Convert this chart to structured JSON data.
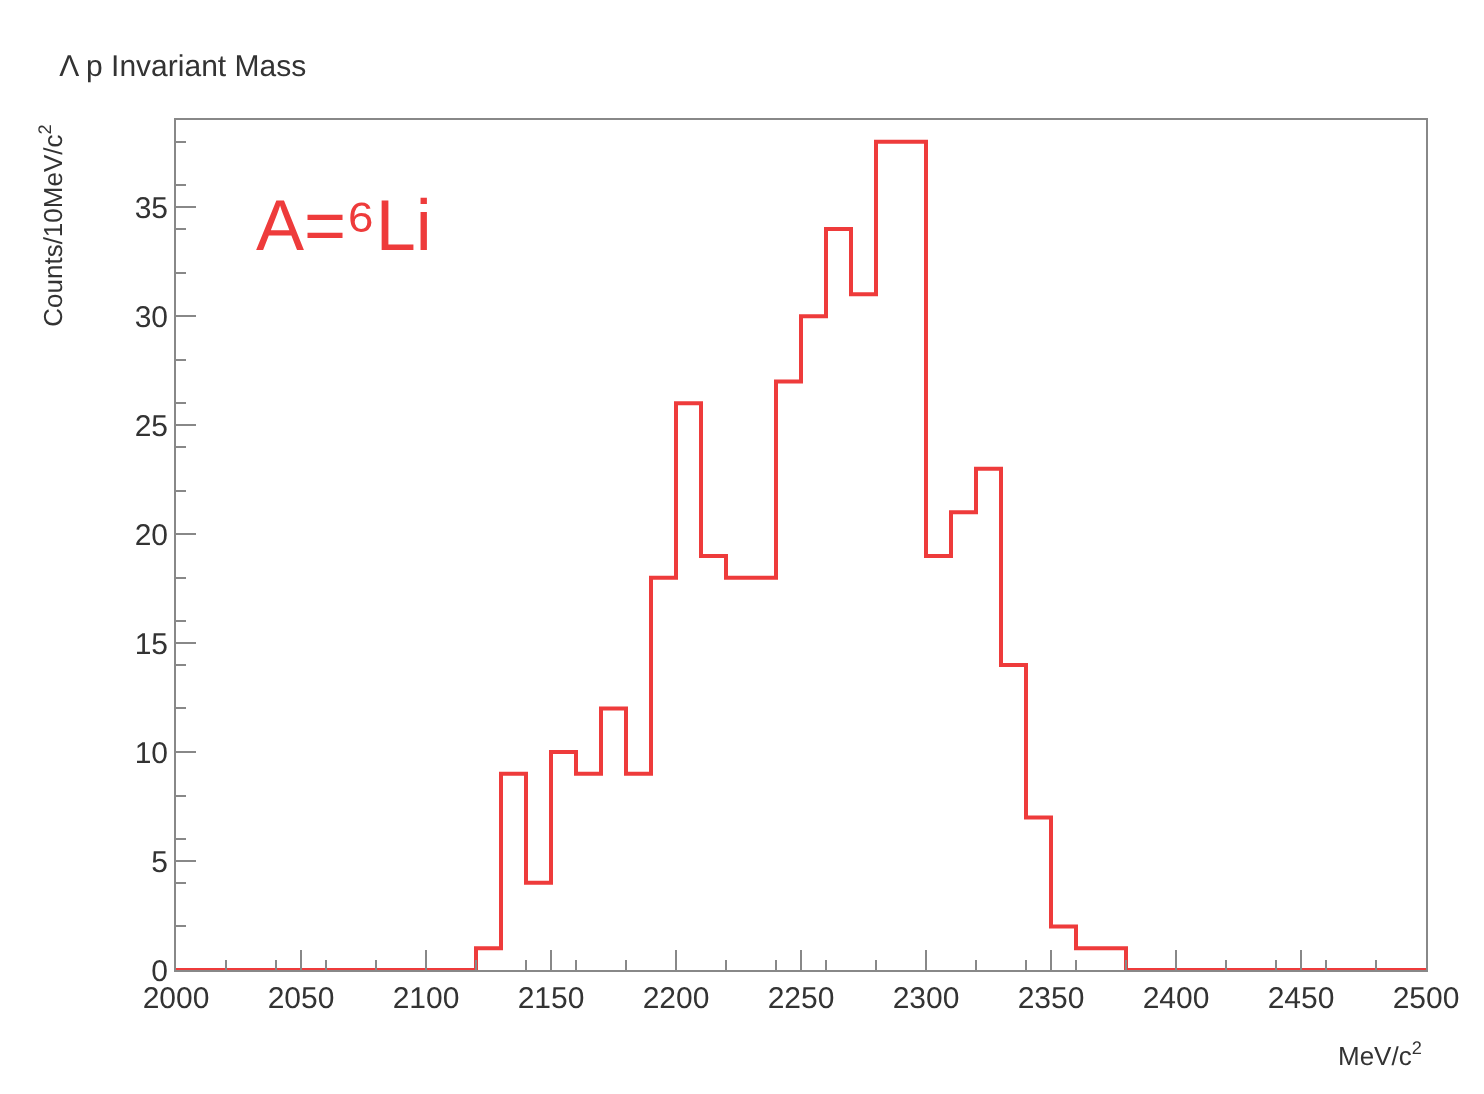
{
  "chart_data": {
    "type": "histogram",
    "title": "Λ p Invariant Mass",
    "xlabel": "MeV/c$^{2}$",
    "ylabel": "Counts/10MeV/c$^{2}$",
    "annotations": [
      "A=⁶Li"
    ],
    "bins": [
      2000,
      2010,
      2020,
      2030,
      2040,
      2050,
      2060,
      2070,
      2080,
      2090,
      2100,
      2110,
      2120,
      2130,
      2140,
      2150,
      2160,
      2170,
      2180,
      2190,
      2200,
      2210,
      2220,
      2230,
      2240,
      2250,
      2260,
      2270,
      2280,
      2290,
      2300,
      2310,
      2320,
      2330,
      2340,
      2350,
      2360,
      2370,
      2380,
      2390,
      2400,
      2410,
      2420,
      2430,
      2440,
      2450,
      2460,
      2470,
      2480,
      2490,
      2500
    ],
    "values": [
      0,
      0,
      0,
      0,
      0,
      0,
      0,
      0,
      0,
      0,
      0,
      0,
      1,
      9,
      4,
      10,
      9,
      12,
      9,
      18,
      26,
      19,
      18,
      18,
      27,
      30,
      34,
      31,
      38,
      38,
      19,
      21,
      23,
      14,
      7,
      2,
      1,
      1,
      0,
      0,
      0,
      0,
      0,
      0,
      0,
      0,
      0,
      0,
      0,
      0
    ],
    "color": "#ee3b3b",
    "xlim": [
      2000,
      2500
    ],
    "xticks": [
      2000,
      2050,
      2100,
      2150,
      2200,
      2250,
      2300,
      2350,
      2400,
      2450,
      2500
    ],
    "ylim": [
      0,
      39
    ],
    "yticks": [
      0,
      5,
      10,
      15,
      20,
      25,
      30,
      35
    ]
  }
}
